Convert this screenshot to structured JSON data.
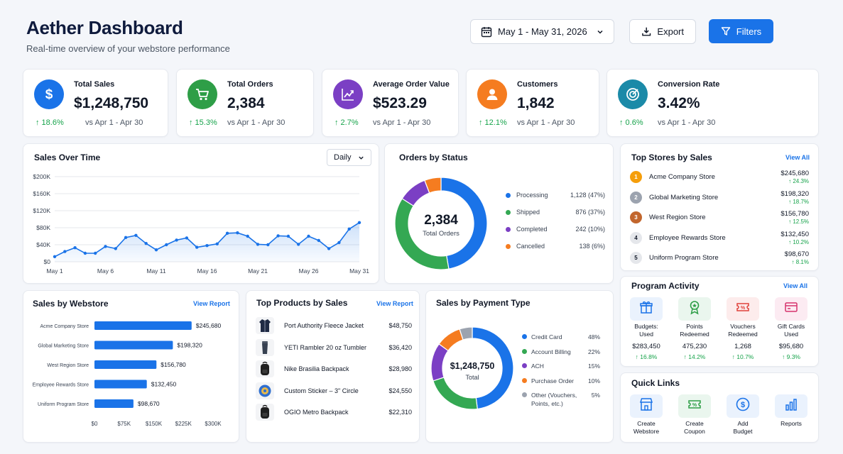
{
  "header": {
    "title": "Aether Dashboard",
    "subtitle": "Real-time overview of your webstore performance",
    "date_range": "May 1 - May 31, 2026",
    "export_label": "Export",
    "filters_label": "Filters"
  },
  "kpis": [
    {
      "label": "Total Sales",
      "value": "$1,248,750",
      "delta": "↑ 18.6%",
      "compare": "vs Apr 1 - Apr 30",
      "icon": "dollar-icon",
      "color": "#1a73e8"
    },
    {
      "label": "Total Orders",
      "value": "2,384",
      "delta": "↑ 15.3%",
      "compare": "vs Apr 1 - Apr 30",
      "icon": "cart-icon",
      "color": "#2e9e47"
    },
    {
      "label": "Average Order Value",
      "value": "$523.29",
      "delta": "↑ 2.7%",
      "compare": "vs Apr 1 - Apr 30",
      "icon": "chart-growth-icon",
      "color": "#7b3fc4"
    },
    {
      "label": "Customers",
      "value": "1,842",
      "delta": "↑ 12.1%",
      "compare": "vs Apr 1 - Apr 30",
      "icon": "user-icon",
      "color": "#f57c20"
    },
    {
      "label": "Conversion Rate",
      "value": "3.42%",
      "delta": "↑ 0.6%",
      "compare": "vs Apr 1 - Apr 30",
      "icon": "target-icon",
      "color": "#1b8aa8"
    }
  ],
  "sales_over_time": {
    "title": "Sales Over Time",
    "interval": "Daily"
  },
  "orders_by_status": {
    "title": "Orders by Status",
    "center_value": "2,384",
    "center_label": "Total Orders"
  },
  "top_stores": {
    "title": "Top Stores by Sales",
    "view_all": "View All",
    "items": [
      {
        "rank": "1",
        "name": "Acme Company Store",
        "amount": "$245,680",
        "delta": "↑ 24.3%",
        "color": "#f59e0b"
      },
      {
        "rank": "2",
        "name": "Global Marketing Store",
        "amount": "$198,320",
        "delta": "↑ 18.7%",
        "color": "#9ca3af"
      },
      {
        "rank": "3",
        "name": "West Region Store",
        "amount": "$156,780",
        "delta": "↑ 12.5%",
        "color": "#c2662d"
      },
      {
        "rank": "4",
        "name": "Employee Rewards Store",
        "amount": "$132,450",
        "delta": "↑ 10.2%",
        "color": "#e5e7eb"
      },
      {
        "rank": "5",
        "name": "Uniform Program Store",
        "amount": "$98,670",
        "delta": "↑ 8.1%",
        "color": "#e5e7eb"
      }
    ]
  },
  "sales_by_webstore": {
    "title": "Sales by Webstore",
    "view_report": "View Report"
  },
  "top_products": {
    "title": "Top Products by Sales",
    "view_report": "View Report",
    "items": [
      {
        "name": "Port Authority Fleece Jacket",
        "amount": "$48,750",
        "icon": "jacket-icon"
      },
      {
        "name": "YETI Rambler 20 oz Tumbler",
        "amount": "$36,420",
        "icon": "tumbler-icon"
      },
      {
        "name": "Nike Brasilia Backpack",
        "amount": "$28,980",
        "icon": "backpack-icon"
      },
      {
        "name": "Custom Sticker – 3\" Circle",
        "amount": "$24,550",
        "icon": "sticker-icon"
      },
      {
        "name": "OGIO Metro Backpack",
        "amount": "$22,310",
        "icon": "backpack-icon"
      }
    ]
  },
  "payment_type": {
    "title": "Sales by Payment Type",
    "center_value": "$1,248,750",
    "center_label": "Total",
    "other_line1": "Other (Vouchers,",
    "other_line2": "Points, etc.)"
  },
  "program_activity": {
    "title": "Program Activity",
    "view_all": "View All",
    "items": [
      {
        "label1": "Budgets:",
        "label2": "Used",
        "value": "$283,450",
        "delta": "↑ 16.8%",
        "icon": "gift-icon",
        "color": "#1a73e8",
        "bg": "#eaf2fd"
      },
      {
        "label1": "Points",
        "label2": "Redeemed",
        "value": "475,230",
        "delta": "↑ 14.2%",
        "icon": "award-icon",
        "color": "#2e9e47",
        "bg": "#eaf6ee"
      },
      {
        "label1": "Vouchers",
        "label2": "Redeemed",
        "value": "1,268",
        "delta": "↑ 10.7%",
        "icon": "voucher-icon",
        "color": "#e0413b",
        "bg": "#fdecec"
      },
      {
        "label1": "Gift Cards",
        "label2": "Used",
        "value": "$95,680",
        "delta": "↑ 9.3%",
        "icon": "giftcard-icon",
        "color": "#d6336c",
        "bg": "#fcebf2"
      }
    ]
  },
  "quick_links": {
    "title": "Quick Links",
    "items": [
      {
        "label1": "Create",
        "label2": "Webstore",
        "icon": "storefront-icon",
        "color": "#1a73e8",
        "bg": "#eaf2fd"
      },
      {
        "label1": "Create",
        "label2": "Coupon",
        "icon": "coupon-icon",
        "color": "#2e9e47",
        "bg": "#eaf6ee"
      },
      {
        "label1": "Add",
        "label2": "Budget",
        "icon": "dollar-circle-icon",
        "color": "#1a73e8",
        "bg": "#eaf2fd"
      },
      {
        "label1": "Reports",
        "label2": "",
        "icon": "bar-chart-icon",
        "color": "#1a73e8",
        "bg": "#eaf2fd"
      }
    ]
  },
  "colors": {
    "primary": "#1a73e8",
    "positive": "#16a34a"
  },
  "chart_data": [
    {
      "type": "area",
      "x": [
        "May 1",
        "May 2",
        "May 3",
        "May 4",
        "May 5",
        "May 6",
        "May 7",
        "May 8",
        "May 9",
        "May 10",
        "May 11",
        "May 12",
        "May 13",
        "May 14",
        "May 15",
        "May 16",
        "May 17",
        "May 18",
        "May 19",
        "May 20",
        "May 21",
        "May 22",
        "May 23",
        "May 24",
        "May 25",
        "May 26",
        "May 27",
        "May 28",
        "May 29",
        "May 30",
        "May 31"
      ],
      "x_ticks": [
        "May 1",
        "May 6",
        "May 11",
        "May 16",
        "May 21",
        "May 26",
        "May 31"
      ],
      "values": [
        12000,
        24000,
        33000,
        20000,
        20000,
        36000,
        31000,
        57000,
        62000,
        43000,
        28000,
        40000,
        51000,
        56000,
        34000,
        38000,
        42000,
        67000,
        68000,
        60000,
        41000,
        40000,
        61000,
        60000,
        41000,
        60000,
        50000,
        31000,
        45000,
        77000,
        92000
      ],
      "ylim": [
        0,
        200000
      ],
      "y_ticks": [
        "$0",
        "$40K",
        "$80K",
        "$120K",
        "$160K",
        "$200K"
      ],
      "grid": true
    },
    {
      "type": "pie",
      "labels": [
        "Processing",
        "Shipped",
        "Completed",
        "Cancelled"
      ],
      "values": [
        1128,
        876,
        242,
        138
      ],
      "value_labels": [
        "1,128 (47%)",
        "876 (37%)",
        "242 (10%)",
        "138 (6%)"
      ],
      "colors": [
        "#1a73e8",
        "#34a853",
        "#7b3fc4",
        "#f57c20"
      ]
    },
    {
      "type": "bar",
      "categories": [
        "Acme Company Store",
        "Global Marketing Store",
        "West Region Store",
        "Employee Rewards Store",
        "Uniform Program Store"
      ],
      "values": [
        245680,
        198320,
        156780,
        132450,
        98670
      ],
      "value_labels": [
        "$245,680",
        "$198,320",
        "$156,780",
        "$132,450",
        "$98,670"
      ],
      "x_ticks": [
        "$0",
        "$75K",
        "$150K",
        "$225K",
        "$300K"
      ],
      "xlim": [
        0,
        300000
      ]
    },
    {
      "type": "pie",
      "labels": [
        "Credit Card",
        "Account Billing",
        "ACH",
        "Purchase Order",
        "Other (Vouchers, Points, etc.)"
      ],
      "values": [
        48,
        22,
        15,
        10,
        5
      ],
      "value_labels": [
        "48%",
        "22%",
        "15%",
        "10%",
        "5%"
      ],
      "colors": [
        "#1a73e8",
        "#34a853",
        "#7b3fc4",
        "#f57c20",
        "#9ca3af"
      ]
    }
  ]
}
